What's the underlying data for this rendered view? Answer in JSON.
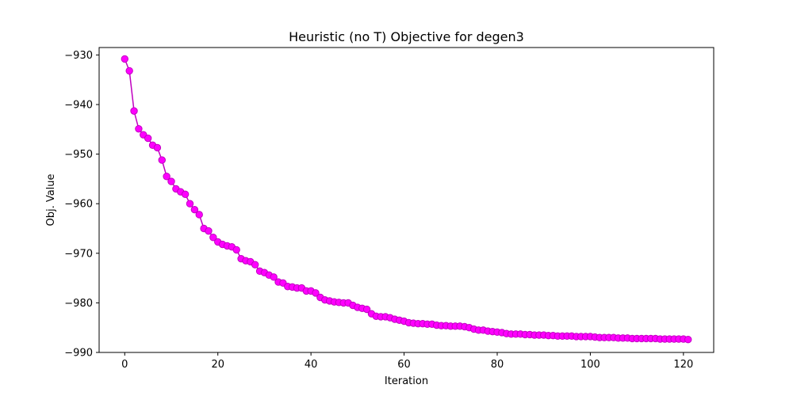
{
  "chart_data": {
    "type": "line",
    "title": "Heuristic (no T) Objective for degen3",
    "xlabel": "Iteration",
    "ylabel": "Obj. Value",
    "xlim": [
      -5.5,
      126.5
    ],
    "ylim": [
      -990,
      -928.5
    ],
    "xticks": [
      {
        "value": 0,
        "label": "0"
      },
      {
        "value": 20,
        "label": "20"
      },
      {
        "value": 40,
        "label": "40"
      },
      {
        "value": 60,
        "label": "60"
      },
      {
        "value": 80,
        "label": "80"
      },
      {
        "value": 100,
        "label": "100"
      },
      {
        "value": 120,
        "label": "120"
      }
    ],
    "yticks": [
      {
        "value": -930,
        "label": "−930"
      },
      {
        "value": -940,
        "label": "−940"
      },
      {
        "value": -950,
        "label": "−950"
      },
      {
        "value": -960,
        "label": "−960"
      },
      {
        "value": -970,
        "label": "−970"
      },
      {
        "value": -980,
        "label": "−980"
      },
      {
        "value": -990,
        "label": "−990"
      }
    ],
    "grid": false,
    "color": "#ff00ff",
    "line_color": "#c000c0",
    "series": [
      {
        "x": [
          0,
          1,
          2,
          3,
          4,
          5,
          6,
          7,
          8,
          9,
          10,
          11,
          12,
          13,
          14,
          15,
          16,
          17,
          18,
          19,
          20,
          21,
          22,
          23,
          24,
          25,
          26,
          27,
          28,
          29,
          30,
          31,
          32,
          33,
          34,
          35,
          36,
          37,
          38,
          39,
          40,
          41,
          42,
          43,
          44,
          45,
          46,
          47,
          48,
          49,
          50,
          51,
          52,
          53,
          54,
          55,
          56,
          57,
          58,
          59,
          60,
          61,
          62,
          63,
          64,
          65,
          66,
          67,
          68,
          69,
          70,
          71,
          72,
          73,
          74,
          75,
          76,
          77,
          78,
          79,
          80,
          81,
          82,
          83,
          84,
          85,
          86,
          87,
          88,
          89,
          90,
          91,
          92,
          93,
          94,
          95,
          96,
          97,
          98,
          99,
          100,
          101,
          102,
          103,
          104,
          105,
          106,
          107,
          108,
          109,
          110,
          111,
          112,
          113,
          114,
          115,
          116,
          117,
          118,
          119,
          120,
          121
        ],
        "y": [
          -930.8,
          -933.2,
          -941.3,
          -944.9,
          -946.1,
          -946.8,
          -948.2,
          -948.7,
          -951.2,
          -954.5,
          -955.5,
          -957.0,
          -957.6,
          -958.1,
          -960.0,
          -961.2,
          -962.2,
          -965.0,
          -965.5,
          -966.8,
          -967.7,
          -968.2,
          -968.5,
          -968.7,
          -969.3,
          -971.1,
          -971.5,
          -971.7,
          -972.3,
          -973.6,
          -973.9,
          -974.4,
          -974.8,
          -975.8,
          -976.0,
          -976.7,
          -976.8,
          -977.0,
          -977.0,
          -977.6,
          -977.6,
          -978.0,
          -978.9,
          -979.4,
          -979.6,
          -979.8,
          -979.9,
          -980.0,
          -980.0,
          -980.5,
          -980.9,
          -981.1,
          -981.3,
          -982.2,
          -982.7,
          -982.8,
          -982.8,
          -983.0,
          -983.3,
          -983.5,
          -983.7,
          -984.0,
          -984.1,
          -984.2,
          -984.2,
          -984.3,
          -984.3,
          -984.5,
          -984.6,
          -984.6,
          -984.7,
          -984.7,
          -984.7,
          -984.8,
          -985.0,
          -985.3,
          -985.5,
          -985.5,
          -985.7,
          -985.8,
          -985.9,
          -986.0,
          -986.2,
          -986.3,
          -986.3,
          -986.3,
          -986.4,
          -986.4,
          -986.5,
          -986.5,
          -986.5,
          -986.6,
          -986.6,
          -986.7,
          -986.7,
          -986.7,
          -986.7,
          -986.8,
          -986.8,
          -986.8,
          -986.8,
          -986.9,
          -987.0,
          -987.0,
          -987.0,
          -987.0,
          -987.1,
          -987.1,
          -987.1,
          -987.2,
          -987.2,
          -987.2,
          -987.2,
          -987.2,
          -987.2,
          -987.3,
          -987.3,
          -987.3,
          -987.3,
          -987.3,
          -987.3,
          -987.4
        ]
      }
    ]
  }
}
